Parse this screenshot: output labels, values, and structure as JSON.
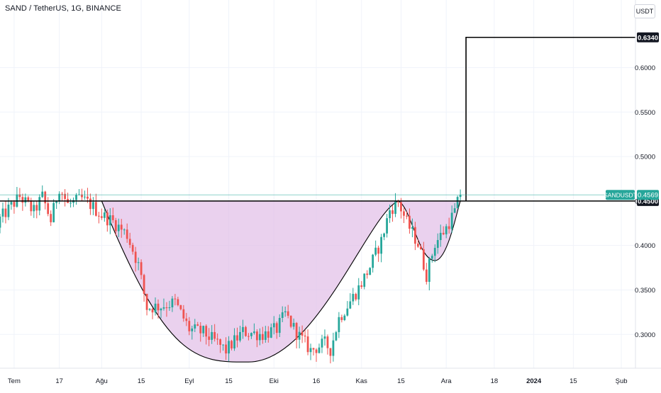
{
  "title": "SAND / TetherUS, 1G, BINANCE",
  "currency_button": "USDT",
  "colors": {
    "up": "#26a69a",
    "down": "#ef5350",
    "pattern_fill": "#e1bee7",
    "pattern_line": "#000000",
    "grid": "#f0f3fa",
    "current_price": "#26a69a"
  },
  "chart_data": {
    "type": "candlestick",
    "symbol": "SANDUSDT",
    "exchange": "BINANCE",
    "interval": "1G",
    "y_ticks": [
      "0.3000",
      "0.3500",
      "0.4000",
      "0.4500",
      "0.5000",
      "0.5500",
      "0.6000"
    ],
    "y_tick_values": [
      0.3,
      0.35,
      0.4,
      0.45,
      0.5,
      0.55,
      0.6
    ],
    "ylim": [
      0.262,
      0.676
    ],
    "x_ticks": [
      {
        "label": "Tem",
        "date": "2023-07-01"
      },
      {
        "label": "17",
        "date": "2023-07-17"
      },
      {
        "label": "Ağu",
        "date": "2023-08-01"
      },
      {
        "label": "15",
        "date": "2023-08-15"
      },
      {
        "label": "Eyl",
        "date": "2023-09-01"
      },
      {
        "label": "15",
        "date": "2023-09-15"
      },
      {
        "label": "Eki",
        "date": "2023-10-01"
      },
      {
        "label": "16",
        "date": "2023-10-16"
      },
      {
        "label": "Kas",
        "date": "2023-11-01"
      },
      {
        "label": "15",
        "date": "2023-11-15"
      },
      {
        "label": "Ara",
        "date": "2023-12-01"
      },
      {
        "label": "18",
        "date": "2023-12-18"
      },
      {
        "label": "2024",
        "date": "2024-01-01",
        "bold": true
      },
      {
        "label": "15",
        "date": "2024-01-15"
      },
      {
        "label": "Şub",
        "date": "2024-02-01"
      }
    ],
    "date_range": [
      "2023-06-26",
      "2024-02-06"
    ],
    "current_price": {
      "label": "SANDUSDT",
      "value": "0.4569"
    },
    "level_labels": [
      "0.6340",
      "0.4500"
    ],
    "levels": [
      0.634,
      0.45
    ],
    "cup_and_handle": {
      "rim": 0.45,
      "cup_start": "2023-08-01",
      "cup_bottom": {
        "date": "2023-09-22",
        "price": 0.269
      },
      "cup_end": "2023-11-14",
      "handle_bottom": {
        "date": "2023-11-27",
        "price": 0.383
      },
      "handle_end": "2023-12-06",
      "target": {
        "date": "2023-12-08",
        "price": 0.634
      }
    },
    "candles_anchor_close": [
      [
        "2023-06-26",
        0.43
      ],
      [
        "2023-07-03",
        0.455
      ],
      [
        "2023-07-08",
        0.438
      ],
      [
        "2023-07-11",
        0.455
      ],
      [
        "2023-07-14",
        0.428
      ],
      [
        "2023-07-17",
        0.466
      ],
      [
        "2023-07-20",
        0.446
      ],
      [
        "2023-07-25",
        0.452
      ],
      [
        "2023-07-28",
        0.446
      ],
      [
        "2023-08-01",
        0.434
      ],
      [
        "2023-08-05",
        0.427
      ],
      [
        "2023-08-10",
        0.412
      ],
      [
        "2023-08-14",
        0.378
      ],
      [
        "2023-08-17",
        0.33
      ],
      [
        "2023-08-22",
        0.332
      ],
      [
        "2023-08-27",
        0.336
      ],
      [
        "2023-09-01",
        0.306
      ],
      [
        "2023-09-06",
        0.302
      ],
      [
        "2023-09-11",
        0.29
      ],
      [
        "2023-09-14",
        0.282
      ],
      [
        "2023-09-20",
        0.303
      ],
      [
        "2023-09-27",
        0.3
      ],
      [
        "2023-10-02",
        0.306
      ],
      [
        "2023-10-05",
        0.323
      ],
      [
        "2023-10-09",
        0.302
      ],
      [
        "2023-10-14",
        0.282
      ],
      [
        "2023-10-19",
        0.29
      ],
      [
        "2023-10-21",
        0.283
      ],
      [
        "2023-10-24",
        0.318
      ],
      [
        "2023-10-31",
        0.352
      ],
      [
        "2023-11-04",
        0.376
      ],
      [
        "2023-11-08",
        0.405
      ],
      [
        "2023-11-11",
        0.44
      ],
      [
        "2023-11-14",
        0.449
      ],
      [
        "2023-11-17",
        0.426
      ],
      [
        "2023-11-21",
        0.402
      ],
      [
        "2023-11-24",
        0.367
      ],
      [
        "2023-11-27",
        0.402
      ],
      [
        "2023-12-01",
        0.42
      ],
      [
        "2023-12-04",
        0.438
      ],
      [
        "2023-12-06",
        0.457
      ]
    ]
  }
}
